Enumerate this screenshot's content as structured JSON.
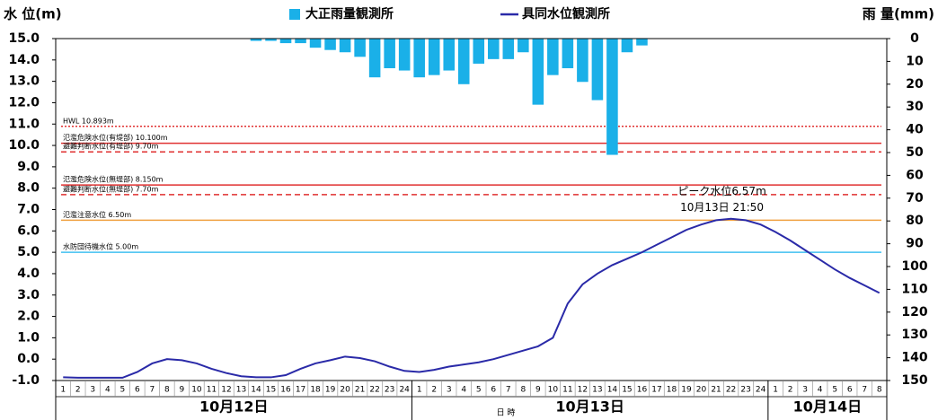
{
  "chart_data": {
    "type": "combo",
    "y_label": "水 位(m)",
    "y2_label": "雨 量(mm)",
    "x_label": "日 時",
    "ylim": [
      -1,
      15
    ],
    "yticks": [
      {
        "value": 15,
        "label": "15.0"
      },
      {
        "value": 14,
        "label": "14.0"
      },
      {
        "value": 13,
        "label": "13.0"
      },
      {
        "value": 12,
        "label": "12.0"
      },
      {
        "value": 11,
        "label": "11.0"
      },
      {
        "value": 10,
        "label": "10.0"
      },
      {
        "value": 9,
        "label": "9.0"
      },
      {
        "value": 8,
        "label": "8.0"
      },
      {
        "value": 7,
        "label": "7.0"
      },
      {
        "value": 6,
        "label": "6.0"
      },
      {
        "value": 5,
        "label": "5.0"
      },
      {
        "value": 4,
        "label": "4.0"
      },
      {
        "value": 3,
        "label": "3.0"
      },
      {
        "value": 2,
        "label": "2.0"
      },
      {
        "value": 1,
        "label": "1.0"
      },
      {
        "value": 0,
        "label": "0.0"
      },
      {
        "value": -1,
        "label": "-1.0"
      }
    ],
    "y2lim": [
      0,
      150
    ],
    "y2_inverted": true,
    "y2ticks": [
      0,
      10,
      20,
      30,
      40,
      50,
      60,
      70,
      80,
      90,
      100,
      110,
      120,
      130,
      140,
      150
    ],
    "days": [
      "10月12日",
      "10月13日",
      "10月14日"
    ],
    "categories": [
      1,
      2,
      3,
      4,
      5,
      6,
      7,
      8,
      9,
      10,
      11,
      12,
      13,
      14,
      15,
      16,
      17,
      18,
      19,
      20,
      21,
      22,
      23,
      24,
      1,
      2,
      3,
      4,
      5,
      6,
      7,
      8,
      9,
      10,
      11,
      12,
      13,
      14,
      15,
      16,
      17,
      18,
      19,
      20,
      21,
      22,
      23,
      24,
      1,
      2,
      3,
      4,
      5,
      6,
      7,
      8
    ],
    "series": [
      {
        "name": "大正雨量観測所",
        "type": "bar",
        "axis": "y2",
        "color": "#1ab0e8",
        "values": [
          null,
          null,
          null,
          null,
          null,
          null,
          null,
          null,
          null,
          null,
          null,
          null,
          null,
          1,
          1,
          2,
          2,
          4,
          5,
          6,
          8,
          17,
          13,
          14,
          17,
          16,
          14,
          20,
          11,
          9,
          9,
          6,
          29,
          16,
          13,
          19,
          27,
          51,
          6,
          3,
          null,
          null,
          null,
          null,
          null,
          null,
          null,
          null,
          null,
          null,
          null,
          null,
          null,
          null,
          null,
          null
        ]
      },
      {
        "name": "具同水位観測所",
        "type": "line",
        "axis": "y",
        "color": "#2a2aa8",
        "values": [
          -0.85,
          -0.87,
          -0.87,
          -0.87,
          -0.87,
          -0.6,
          -0.2,
          0.0,
          -0.05,
          -0.2,
          -0.45,
          -0.65,
          -0.8,
          -0.85,
          -0.85,
          -0.75,
          -0.45,
          -0.2,
          -0.05,
          0.12,
          0.05,
          -0.1,
          -0.35,
          -0.55,
          -0.6,
          -0.5,
          -0.35,
          -0.25,
          -0.15,
          0.0,
          0.2,
          0.4,
          0.6,
          1.0,
          2.6,
          3.5,
          4.0,
          4.4,
          4.7,
          5.0,
          5.35,
          5.7,
          6.05,
          6.3,
          6.5,
          6.57,
          6.5,
          6.3,
          5.95,
          5.55,
          5.1,
          4.65,
          4.2,
          3.8,
          3.45,
          3.1
        ]
      }
    ],
    "reference_lines": [
      {
        "label": "HWL 10.893m",
        "value": 10.893,
        "color": "#e03030",
        "style": "dotted"
      },
      {
        "label": "氾濫危険水位(有堤部) 10.100m",
        "value": 10.1,
        "color": "#e03030",
        "style": "solid"
      },
      {
        "label": "避難判断水位(有堤部) 9.70m",
        "value": 9.7,
        "color": "#e03030",
        "style": "dashed"
      },
      {
        "label": "氾濫危険水位(無堤部) 8.150m",
        "value": 8.15,
        "color": "#e03030",
        "style": "solid"
      },
      {
        "label": "避難判断水位(無堤部) 7.70m",
        "value": 7.7,
        "color": "#e03030",
        "style": "dashed"
      },
      {
        "label": "氾濫注意水位 6.50m",
        "value": 6.5,
        "color": "#f0a040",
        "style": "solid"
      },
      {
        "label": "水防団待機水位 5.00m",
        "value": 5,
        "color": "#40c0f0",
        "style": "solid"
      }
    ],
    "annotation": {
      "title": "ピーク水位6.57m",
      "time": "10月13日 21:50"
    }
  }
}
